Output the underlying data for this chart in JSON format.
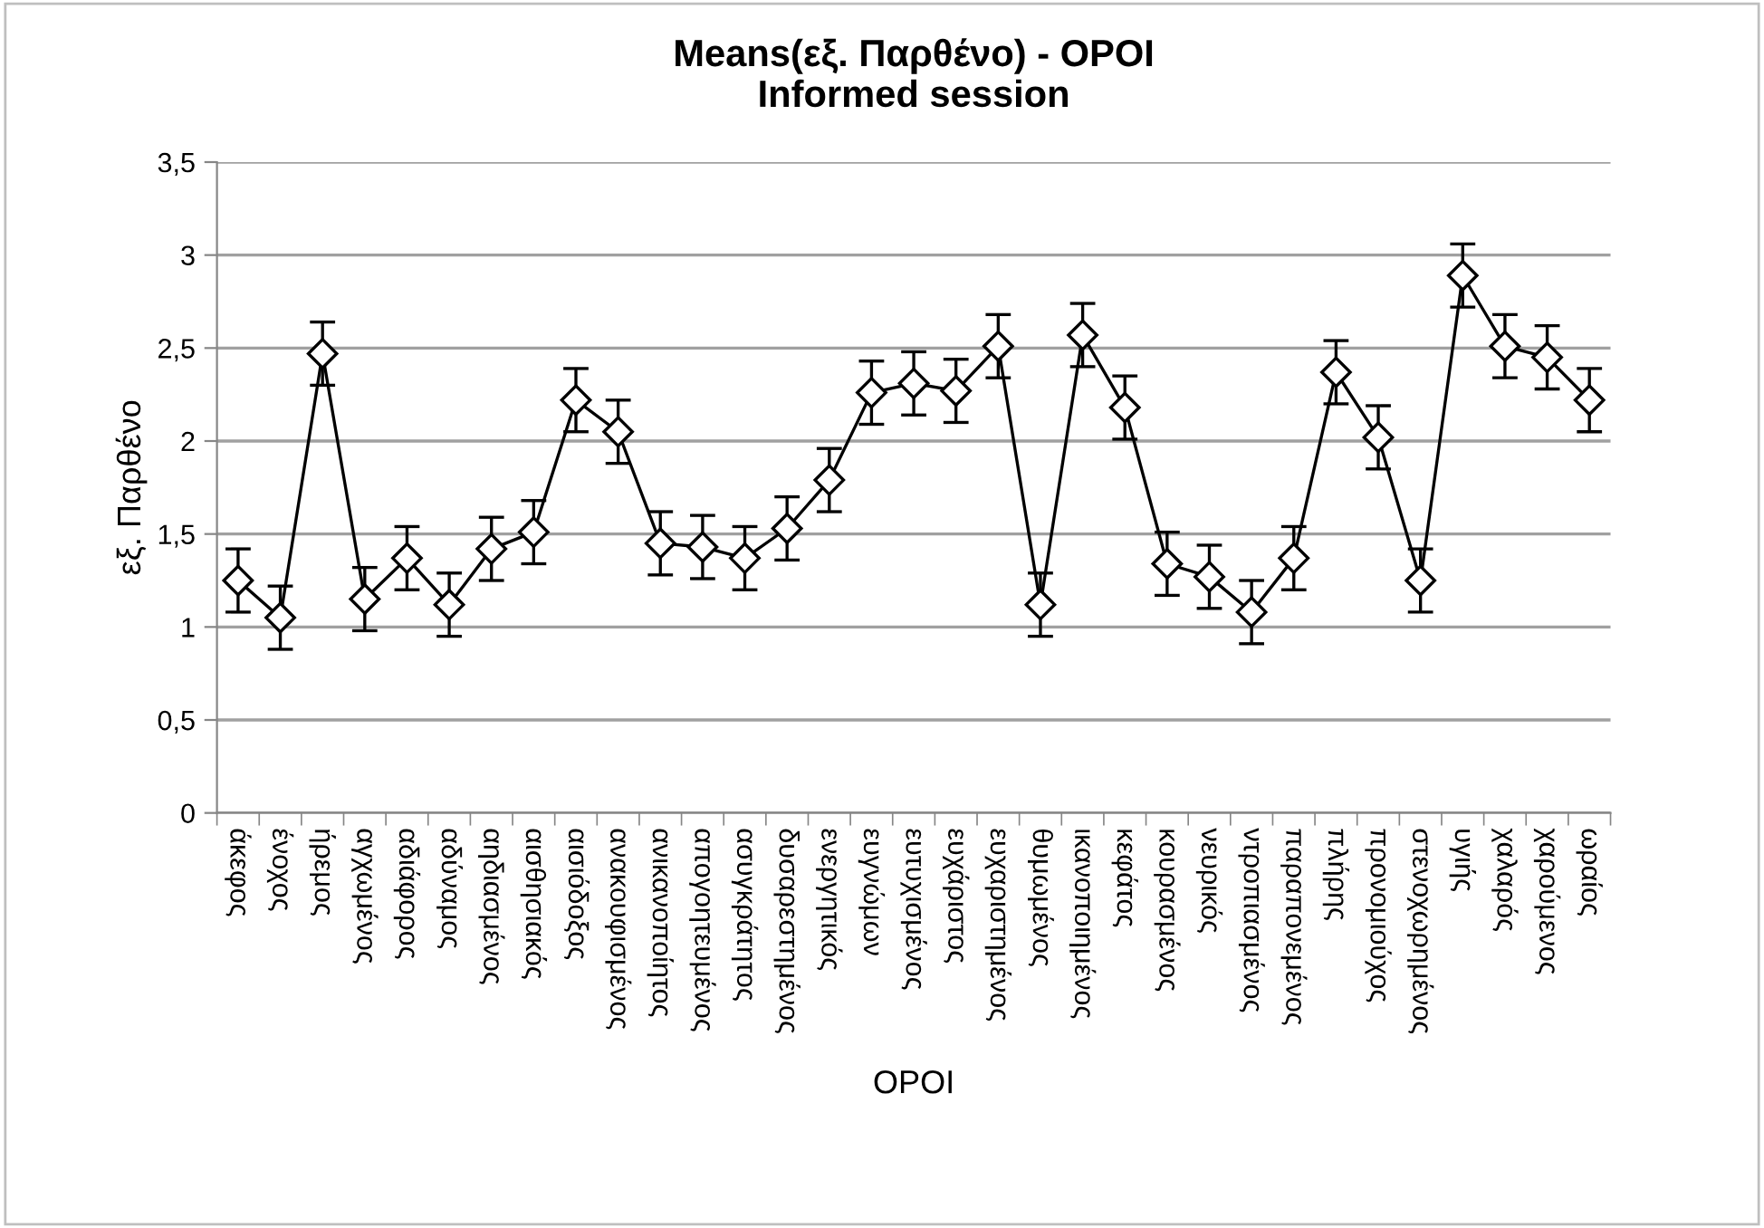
{
  "chart_data": {
    "type": "line",
    "title": "Means(εξ. Παρθένο) - OPOI\nInformed session",
    "xlabel": "OPOI",
    "ylabel": "εξ. Παρθένο",
    "categories": [
      "άκεφος",
      "ένοχος",
      "ήρεμος",
      "αγχωμένος",
      "αδιάφορος",
      "αδύναμος",
      "αηδιασμένος",
      "αισθησιακός",
      "αισιόδοξος",
      "ανακουφισμένος",
      "ανικανοποίητος",
      "απογοητευμένος",
      "ασυγκράτητος",
      "δυσαρεστημένος",
      "ενεργητικός",
      "ευγνώμων",
      "ευτυχισμένος",
      "ευχάριστος",
      "ευχαριστημένος",
      "θυμωμένος",
      "ικανοποιημένος",
      "κεφάτος",
      "κουρασμένος",
      "νευρικός",
      "ντροπιασμένος",
      "παραπονεμένος",
      "πλήρης",
      "προνομιούχος",
      "στενοχωρημένος",
      "υγιής",
      "χαλαρός",
      "χαρούμενος",
      "ωραίος"
    ],
    "series": [
      {
        "color": "#000000",
        "values": [
          1.25,
          1.05,
          2.47,
          1.15,
          1.37,
          1.12,
          1.42,
          1.51,
          2.22,
          2.05,
          1.45,
          1.43,
          1.37,
          1.53,
          1.79,
          2.26,
          2.31,
          2.27,
          2.51,
          1.12,
          2.57,
          2.18,
          1.34,
          1.27,
          1.08,
          1.37,
          2.37,
          2.02,
          1.25,
          2.89,
          2.51,
          2.45,
          2.22
        ],
        "errors": [
          0.17,
          0.17,
          0.17,
          0.17,
          0.17,
          0.17,
          0.17,
          0.17,
          0.17,
          0.17,
          0.17,
          0.17,
          0.17,
          0.17,
          0.17,
          0.17,
          0.17,
          0.17,
          0.17,
          0.17,
          0.17,
          0.17,
          0.17,
          0.17,
          0.17,
          0.17,
          0.17,
          0.17,
          0.17,
          0.17,
          0.17,
          0.17,
          0.17
        ]
      }
    ],
    "ylim": [
      0,
      3.5
    ],
    "yticks": [
      0,
      {
        "value": 0.5,
        "label": "0,5"
      },
      1,
      {
        "value": 1.5,
        "label": "1,5"
      },
      2,
      {
        "value": 2.5,
        "label": "2,5"
      },
      3,
      {
        "value": 3.5,
        "label": "3,5"
      }
    ],
    "grid": "y",
    "marker": "diamond",
    "line_style": "solid",
    "legend": false
  }
}
